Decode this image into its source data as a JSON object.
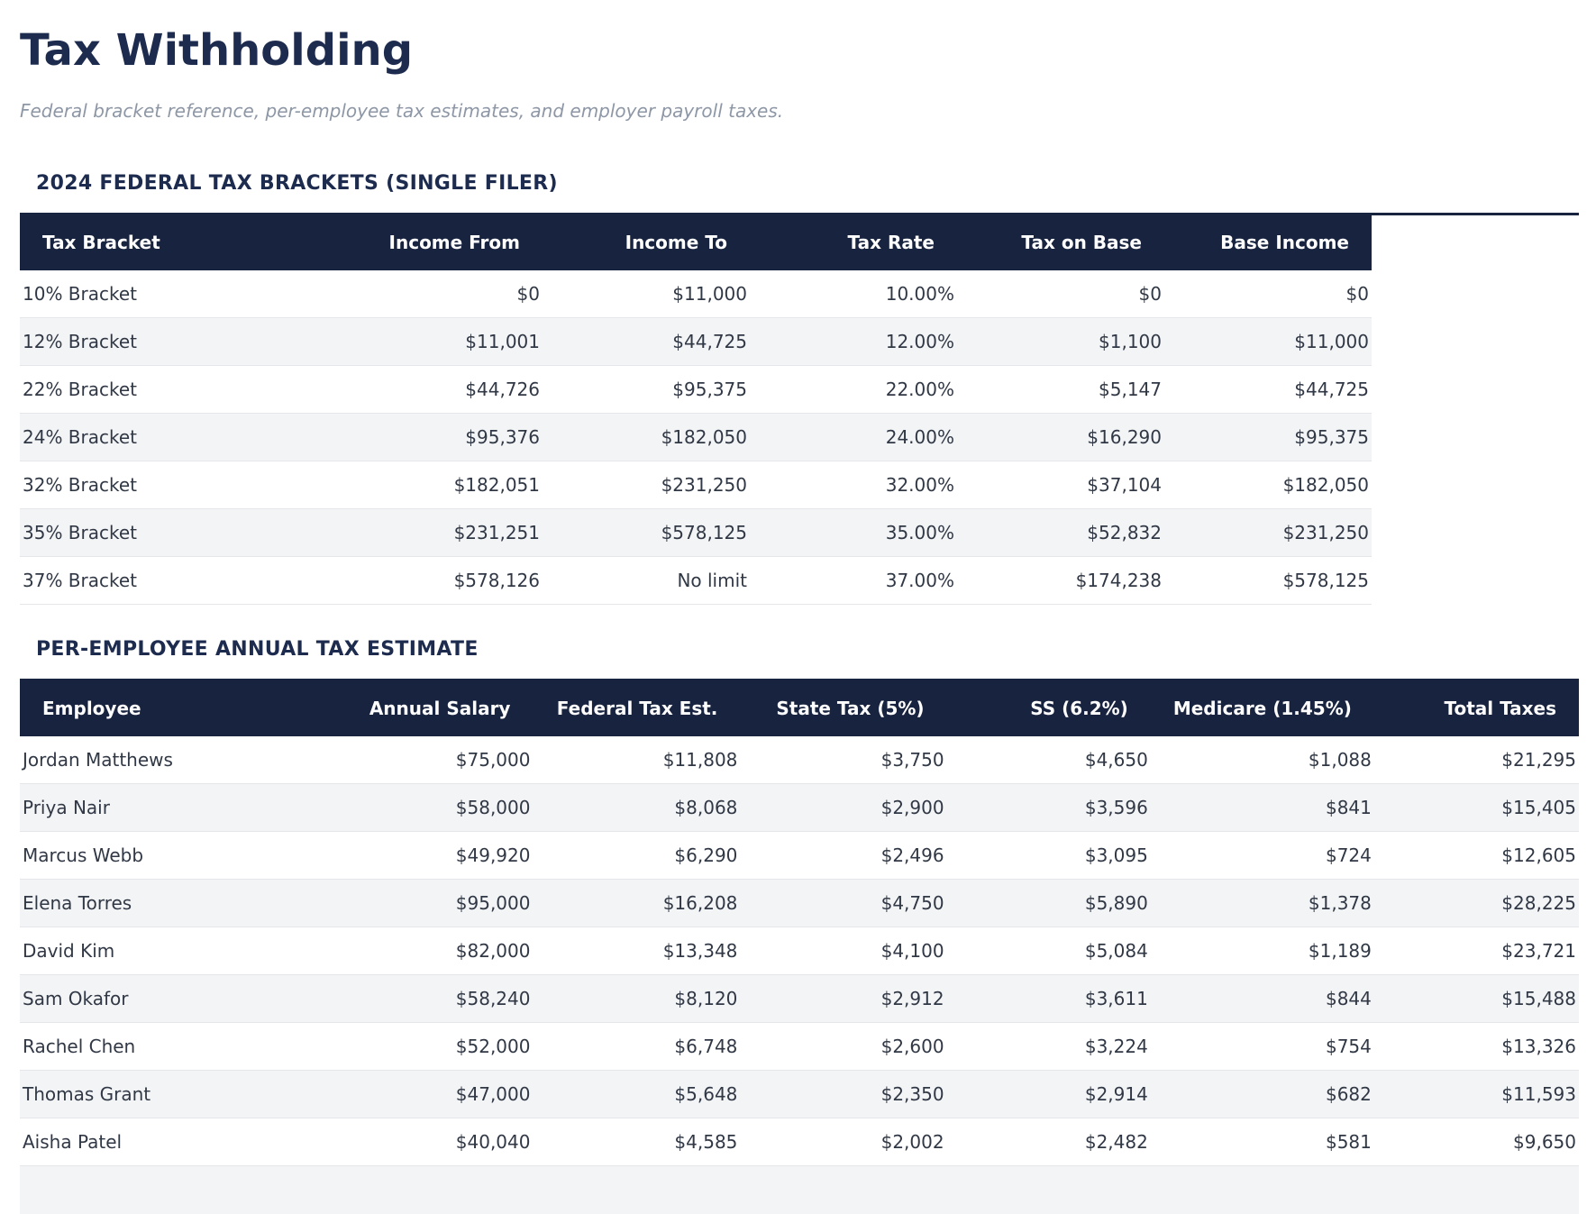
{
  "page": {
    "title": "Tax Withholding",
    "subtitle": "Federal bracket reference, per-employee tax estimates, and employer payroll taxes."
  },
  "colors": {
    "header_bg": "#18233f",
    "heading_text": "#1d2b4e",
    "subtitle_text": "#8e97a6",
    "row_stripe": "#f3f4f6",
    "row_border": "#e4e6ea",
    "body_text": "#313845"
  },
  "brackets_table": {
    "section_title": "2024 FEDERAL TAX BRACKETS (SINGLE FILER)",
    "columns": [
      "Tax Bracket",
      "Income From",
      "Income To",
      "Tax Rate",
      "Tax on Base",
      "Base Income"
    ],
    "rows": [
      [
        "10% Bracket",
        "$0",
        "$11,000",
        "10.00%",
        "$0",
        "$0"
      ],
      [
        "12% Bracket",
        "$11,001",
        "$44,725",
        "12.00%",
        "$1,100",
        "$11,000"
      ],
      [
        "22% Bracket",
        "$44,726",
        "$95,375",
        "22.00%",
        "$5,147",
        "$44,725"
      ],
      [
        "24% Bracket",
        "$95,376",
        "$182,050",
        "24.00%",
        "$16,290",
        "$95,375"
      ],
      [
        "32% Bracket",
        "$182,051",
        "$231,250",
        "32.00%",
        "$37,104",
        "$182,050"
      ],
      [
        "35% Bracket",
        "$231,251",
        "$578,125",
        "35.00%",
        "$52,832",
        "$231,250"
      ],
      [
        "37% Bracket",
        "$578,126",
        "No limit",
        "37.00%",
        "$174,238",
        "$578,125"
      ]
    ]
  },
  "employees_table": {
    "section_title": "PER-EMPLOYEE ANNUAL TAX ESTIMATE",
    "columns": [
      "Employee",
      "Annual Salary",
      "Federal Tax Est.",
      "State Tax (5%)",
      "SS (6.2%)",
      "Medicare (1.45%)",
      "Total Taxes"
    ],
    "rows": [
      [
        "Jordan Matthews",
        "$75,000",
        "$11,808",
        "$3,750",
        "$4,650",
        "$1,088",
        "$21,295"
      ],
      [
        "Priya Nair",
        "$58,000",
        "$8,068",
        "$2,900",
        "$3,596",
        "$841",
        "$15,405"
      ],
      [
        "Marcus Webb",
        "$49,920",
        "$6,290",
        "$2,496",
        "$3,095",
        "$724",
        "$12,605"
      ],
      [
        "Elena Torres",
        "$95,000",
        "$16,208",
        "$4,750",
        "$5,890",
        "$1,378",
        "$28,225"
      ],
      [
        "David Kim",
        "$82,000",
        "$13,348",
        "$4,100",
        "$5,084",
        "$1,189",
        "$23,721"
      ],
      [
        "Sam Okafor",
        "$58,240",
        "$8,120",
        "$2,912",
        "$3,611",
        "$844",
        "$15,488"
      ],
      [
        "Rachel Chen",
        "$52,000",
        "$6,748",
        "$2,600",
        "$3,224",
        "$754",
        "$13,326"
      ],
      [
        "Thomas Grant",
        "$47,000",
        "$5,648",
        "$2,350",
        "$2,914",
        "$682",
        "$11,593"
      ],
      [
        "Aisha Patel",
        "$40,040",
        "$4,585",
        "$2,002",
        "$2,482",
        "$581",
        "$9,650"
      ]
    ]
  }
}
